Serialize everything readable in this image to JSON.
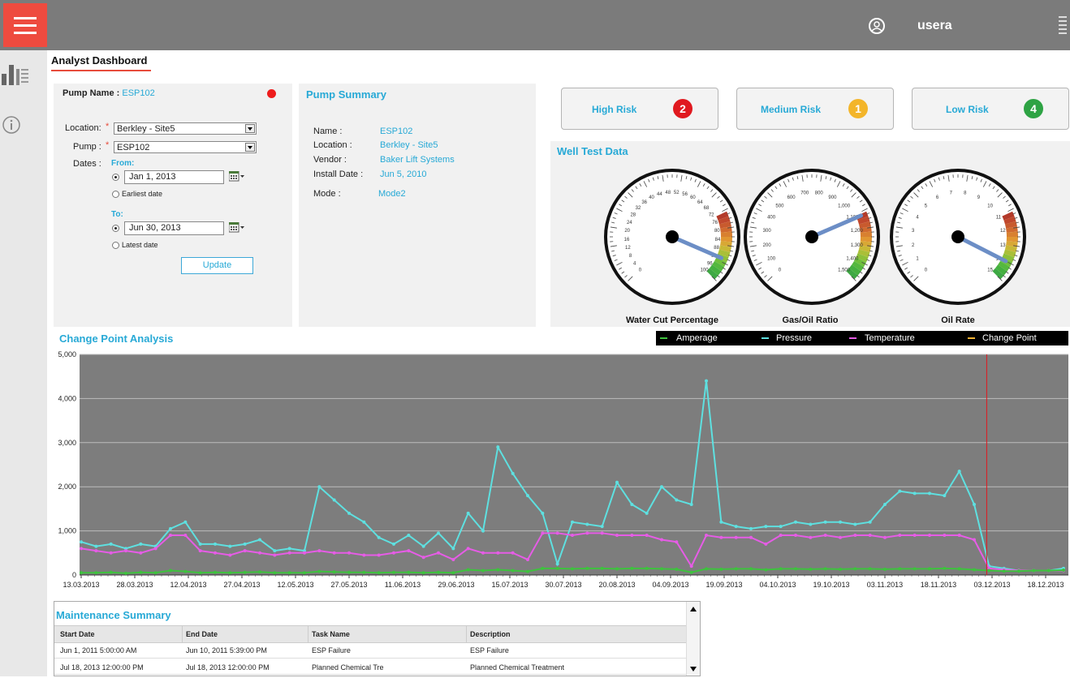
{
  "header": {
    "username": "usera"
  },
  "page": {
    "title": "Analyst Dashboard"
  },
  "pump_filter": {
    "pump_name_label": "Pump Name :",
    "pump_name_value": "ESP102",
    "location_label": "Location:",
    "location_value": "Berkley - Site5",
    "pump_label": "Pump :",
    "pump_value": "ESP102",
    "dates_label": "Dates :",
    "from_label": "From:",
    "from_date": "Jan 1, 2013",
    "earliest_label": "Earliest date",
    "to_label": "To:",
    "to_date": "Jun 30, 2013",
    "latest_label": "Latest date",
    "update_label": "Update",
    "status_color": "#ee1c1c"
  },
  "pump_summary": {
    "title": "Pump Summary",
    "name_label": "Name :",
    "name_value": "ESP102",
    "location_label": "Location :",
    "location_value": "Berkley - Site5",
    "vendor_label": "Vendor :",
    "vendor_value": "Baker Lift Systems",
    "install_label": "Install Date :",
    "install_value": "Jun 5, 2010",
    "mode_label": "Mode :",
    "mode_value": "Mode2"
  },
  "risk": [
    {
      "label": "High Risk",
      "count": "2",
      "color": "#e0191f"
    },
    {
      "label": "Medium Risk",
      "count": "1",
      "color": "#f3b52a"
    },
    {
      "label": "Low Risk",
      "count": "4",
      "color": "#2ea344"
    }
  ],
  "well_test": {
    "title": "Well Test Data",
    "gauges": [
      {
        "label": "Water Cut Percentage",
        "ticks": [
          "0",
          "4",
          "8",
          "12",
          "16",
          "20",
          "24",
          "28",
          "32",
          "36",
          "40",
          "44",
          "48",
          "52",
          "56",
          "60",
          "64",
          "68",
          "72",
          "76",
          "80",
          "84",
          "88",
          "92",
          "96",
          "100"
        ],
        "value": 92,
        "min": 0,
        "max": 100
      },
      {
        "label": "Gas/Oil Ratio",
        "ticks": [
          "0",
          "100",
          "200",
          "300",
          "400",
          "500",
          "600",
          "700",
          "800",
          "900",
          "1,000",
          "1,100",
          "1,200",
          "1,300",
          "1,400",
          "1,500"
        ],
        "value": 1120,
        "min": 0,
        "max": 1500
      },
      {
        "label": "Oil Rate",
        "ticks": [
          "0",
          "1",
          "2",
          "3",
          "4",
          "5",
          "6",
          "7",
          "8",
          "9",
          "10",
          "11",
          "12",
          "13",
          "14",
          "15"
        ],
        "value": 14,
        "min": 0,
        "max": 15
      }
    ]
  },
  "change_point": {
    "title": "Change Point Analysis",
    "legend": [
      {
        "name": "Amperage",
        "color": "#3ec23e"
      },
      {
        "name": "Pressure",
        "color": "#5ee0e0"
      },
      {
        "name": "Temperature",
        "color": "#e65ce6"
      },
      {
        "name": "Change Point",
        "color": "#f2b233"
      }
    ]
  },
  "chart_data": {
    "type": "line",
    "title": "Change Point Analysis",
    "ylim": [
      0,
      5000
    ],
    "yticks": [
      "0",
      "1,000",
      "2,000",
      "3,000",
      "4,000",
      "5,000"
    ],
    "xticks": [
      "13.03.2013",
      "28.03.2013",
      "12.04.2013",
      "27.04.2013",
      "12.05.2013",
      "27.05.2013",
      "11.06.2013",
      "29.06.2013",
      "15.07.2013",
      "30.07.2013",
      "20.08.2013",
      "04.09.2013",
      "19.09.2013",
      "04.10.2013",
      "19.10.2013",
      "03.11.2013",
      "18.11.2013",
      "03.12.2013",
      "18.12.2013"
    ],
    "grid": true,
    "background": "#7d7d7d",
    "change_point_index": 16.9,
    "series": [
      {
        "name": "Pressure",
        "color": "#5ee0e0",
        "values": [
          750,
          650,
          700,
          600,
          700,
          650,
          1050,
          1200,
          700,
          700,
          650,
          700,
          800,
          550,
          600,
          550,
          2000,
          1700,
          1400,
          1200,
          850,
          700,
          900,
          650,
          950,
          600,
          1400,
          1000,
          2900,
          2300,
          1800,
          1400,
          250,
          1200,
          1150,
          1100,
          2100,
          1600,
          1400,
          2000,
          1700,
          1600,
          4400,
          1200,
          1100,
          1050,
          1100,
          1100,
          1200,
          1150,
          1200,
          1200,
          1150,
          1200,
          1600,
          1900,
          1850,
          1850,
          1800,
          2350,
          1600,
          200,
          150,
          100,
          100,
          100,
          150
        ]
      },
      {
        "name": "Temperature",
        "color": "#e65ce6",
        "values": [
          600,
          550,
          500,
          550,
          500,
          600,
          900,
          900,
          550,
          500,
          450,
          550,
          500,
          450,
          500,
          500,
          550,
          500,
          500,
          450,
          450,
          500,
          550,
          400,
          500,
          350,
          600,
          500,
          500,
          500,
          350,
          950,
          950,
          900,
          950,
          950,
          900,
          900,
          900,
          800,
          750,
          200,
          900,
          850,
          850,
          850,
          700,
          900,
          900,
          850,
          900,
          850,
          900,
          900,
          850,
          900,
          900,
          900,
          900,
          900,
          800,
          150,
          120,
          100,
          100,
          100,
          100
        ]
      },
      {
        "name": "Amperage",
        "color": "#3ec23e",
        "values": [
          50,
          50,
          60,
          40,
          60,
          50,
          100,
          80,
          50,
          60,
          50,
          60,
          70,
          50,
          50,
          50,
          80,
          70,
          60,
          60,
          50,
          60,
          60,
          50,
          60,
          50,
          120,
          100,
          120,
          100,
          80,
          150,
          150,
          140,
          150,
          150,
          140,
          150,
          150,
          140,
          130,
          60,
          140,
          130,
          140,
          140,
          120,
          140,
          140,
          130,
          140,
          130,
          140,
          140,
          130,
          140,
          140,
          140,
          150,
          140,
          120,
          100,
          90,
          90,
          100,
          100,
          110
        ]
      }
    ]
  },
  "maintenance": {
    "title": "Maintenance Summary",
    "columns": [
      "Start Date",
      "End Date",
      "Task Name",
      "Description"
    ],
    "rows": [
      [
        "Jun 1, 2011 5:00:00 AM",
        "Jun 10, 2011 5:39:00 PM",
        "ESP Failure",
        "ESP Failure"
      ],
      [
        "Jul 18, 2013 12:00:00 PM",
        "Jul 18, 2013 12:00:00 PM",
        "Planned Chemical Tre",
        "Planned Chemical Treatment"
      ]
    ]
  }
}
